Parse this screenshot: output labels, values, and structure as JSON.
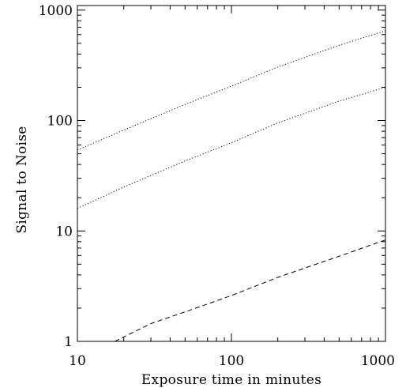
{
  "chart_data": {
    "type": "line",
    "title": "",
    "xlabel": "Exposure time in minutes",
    "ylabel": "Signal to Noise",
    "xscale": "log",
    "yscale": "log",
    "xlim": [
      10,
      1000
    ],
    "ylim": [
      1,
      1100
    ],
    "grid": false,
    "legend": "none",
    "x_ticks": [
      {
        "value": 10,
        "label": "10"
      },
      {
        "value": 100,
        "label": "100"
      },
      {
        "value": 1000,
        "label": "1000"
      }
    ],
    "y_ticks": [
      {
        "value": 1,
        "label": "1"
      },
      {
        "value": 10,
        "label": "10"
      },
      {
        "value": 100,
        "label": "100"
      },
      {
        "value": 1000,
        "label": "1000"
      }
    ],
    "series": [
      {
        "style": "dotted",
        "color": "#000000",
        "x": [
          10,
          20,
          50,
          100,
          200,
          500,
          1000
        ],
        "y": [
          54,
          82,
          140,
          205,
          305,
          480,
          650
        ]
      },
      {
        "style": "dotted",
        "color": "#000000",
        "x": [
          10,
          20,
          50,
          100,
          200,
          500,
          1000
        ],
        "y": [
          16,
          25,
          43,
          63,
          95,
          150,
          200
        ]
      },
      {
        "style": "dashed",
        "color": "#000000",
        "x": [
          17.5,
          30,
          50,
          100,
          200,
          500,
          1000
        ],
        "y": [
          1.0,
          1.45,
          1.85,
          2.6,
          3.8,
          5.9,
          8.3
        ]
      }
    ]
  }
}
